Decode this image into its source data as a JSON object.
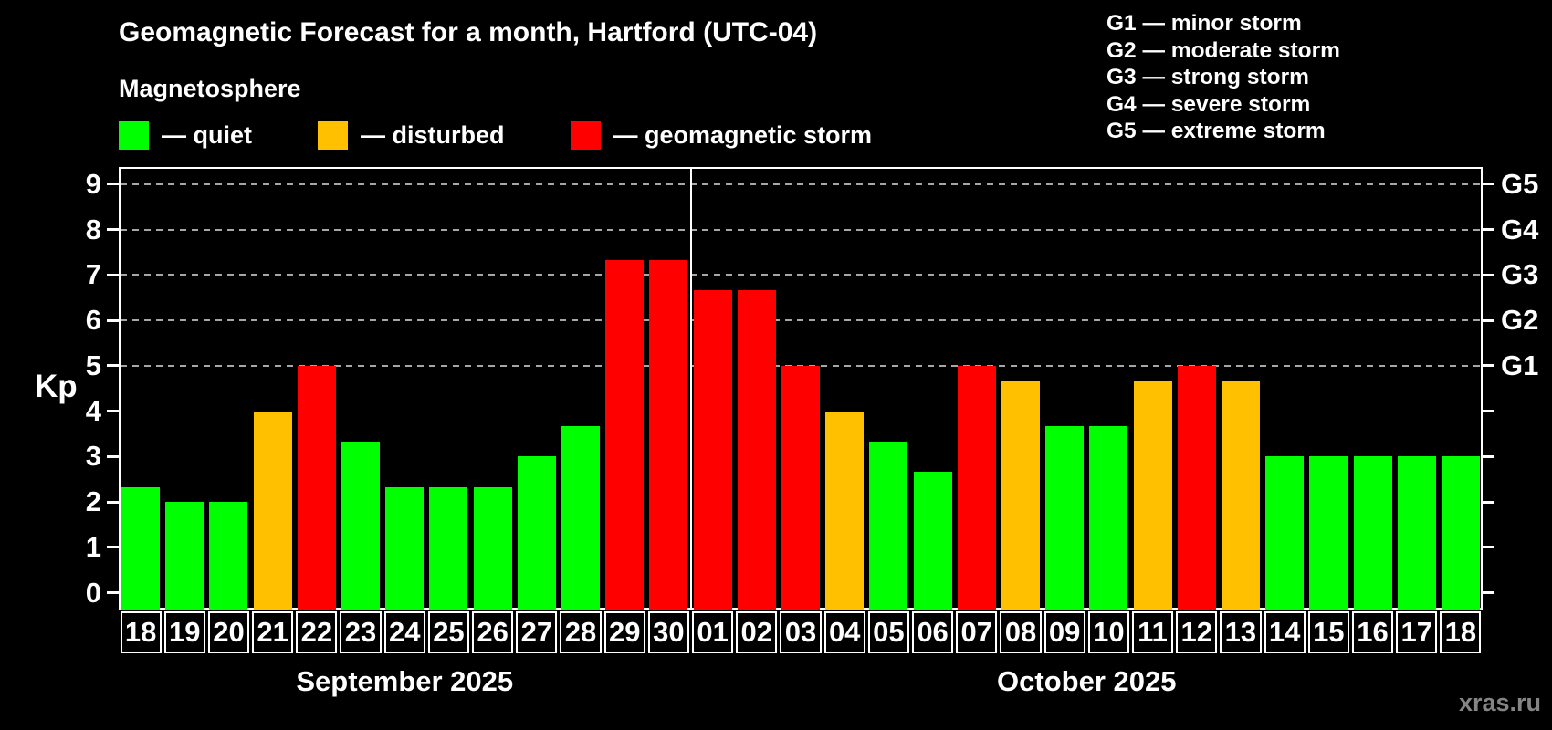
{
  "header": {
    "title": "Geomagnetic Forecast for a month, Hartford (UTC-04)",
    "subtitle": "Magnetosphere"
  },
  "legend": {
    "items": [
      {
        "label": "— quiet",
        "color": "#00ff00"
      },
      {
        "label": "— disturbed",
        "color": "#ffc000"
      },
      {
        "label": "— geomagnetic storm",
        "color": "#ff0000"
      }
    ]
  },
  "g_legend": {
    "lines": [
      "G1 — minor storm",
      "G2 — moderate storm",
      "G3 — strong storm",
      "G4 — severe storm",
      "G5 — extreme storm"
    ]
  },
  "axis": {
    "kp_label": "Kp"
  },
  "watermark": "xras.ru",
  "chart_data": {
    "type": "bar",
    "title": "Geomagnetic Forecast for a month, Hartford (UTC-04)",
    "subtitle": "Magnetosphere",
    "ylabel": "Kp",
    "ylim": [
      -0.37,
      9.38
    ],
    "yticks": [
      0,
      1,
      2,
      3,
      4,
      5,
      6,
      7,
      8,
      9
    ],
    "grid_kp_levels": [
      5,
      6,
      7,
      8,
      9
    ],
    "right_axis": [
      {
        "kp": 5,
        "label": "G1"
      },
      {
        "kp": 6,
        "label": "G2"
      },
      {
        "kp": 7,
        "label": "G3"
      },
      {
        "kp": 8,
        "label": "G4"
      },
      {
        "kp": 9,
        "label": "G5"
      }
    ],
    "status_colors": {
      "quiet": "#00ff00",
      "disturbed": "#ffc000",
      "storm": "#ff0000"
    },
    "months": [
      {
        "label": "September 2025",
        "days": 13
      },
      {
        "label": "October 2025",
        "days": 18
      }
    ],
    "bars": [
      {
        "day": "18",
        "kp": 2.33,
        "status": "quiet"
      },
      {
        "day": "19",
        "kp": 2.0,
        "status": "quiet"
      },
      {
        "day": "20",
        "kp": 2.0,
        "status": "quiet"
      },
      {
        "day": "21",
        "kp": 4.0,
        "status": "disturbed"
      },
      {
        "day": "22",
        "kp": 5.0,
        "status": "storm"
      },
      {
        "day": "23",
        "kp": 3.33,
        "status": "quiet"
      },
      {
        "day": "24",
        "kp": 2.33,
        "status": "quiet"
      },
      {
        "day": "25",
        "kp": 2.33,
        "status": "quiet"
      },
      {
        "day": "26",
        "kp": 2.33,
        "status": "quiet"
      },
      {
        "day": "27",
        "kp": 3.0,
        "status": "quiet"
      },
      {
        "day": "28",
        "kp": 3.67,
        "status": "quiet"
      },
      {
        "day": "29",
        "kp": 7.33,
        "status": "storm"
      },
      {
        "day": "30",
        "kp": 7.33,
        "status": "storm"
      },
      {
        "day": "01",
        "kp": 6.67,
        "status": "storm"
      },
      {
        "day": "02",
        "kp": 6.67,
        "status": "storm"
      },
      {
        "day": "03",
        "kp": 5.0,
        "status": "storm"
      },
      {
        "day": "04",
        "kp": 4.0,
        "status": "disturbed"
      },
      {
        "day": "05",
        "kp": 3.33,
        "status": "quiet"
      },
      {
        "day": "06",
        "kp": 2.67,
        "status": "quiet"
      },
      {
        "day": "07",
        "kp": 5.0,
        "status": "storm"
      },
      {
        "day": "08",
        "kp": 4.67,
        "status": "disturbed"
      },
      {
        "day": "09",
        "kp": 3.67,
        "status": "quiet"
      },
      {
        "day": "10",
        "kp": 3.67,
        "status": "quiet"
      },
      {
        "day": "11",
        "kp": 4.67,
        "status": "disturbed"
      },
      {
        "day": "12",
        "kp": 5.0,
        "status": "storm"
      },
      {
        "day": "13",
        "kp": 4.67,
        "status": "disturbed"
      },
      {
        "day": "14",
        "kp": 3.0,
        "status": "quiet"
      },
      {
        "day": "15",
        "kp": 3.0,
        "status": "quiet"
      },
      {
        "day": "16",
        "kp": 3.0,
        "status": "quiet"
      },
      {
        "day": "17",
        "kp": 3.0,
        "status": "quiet"
      },
      {
        "day": "18",
        "kp": 3.0,
        "status": "quiet"
      }
    ]
  }
}
